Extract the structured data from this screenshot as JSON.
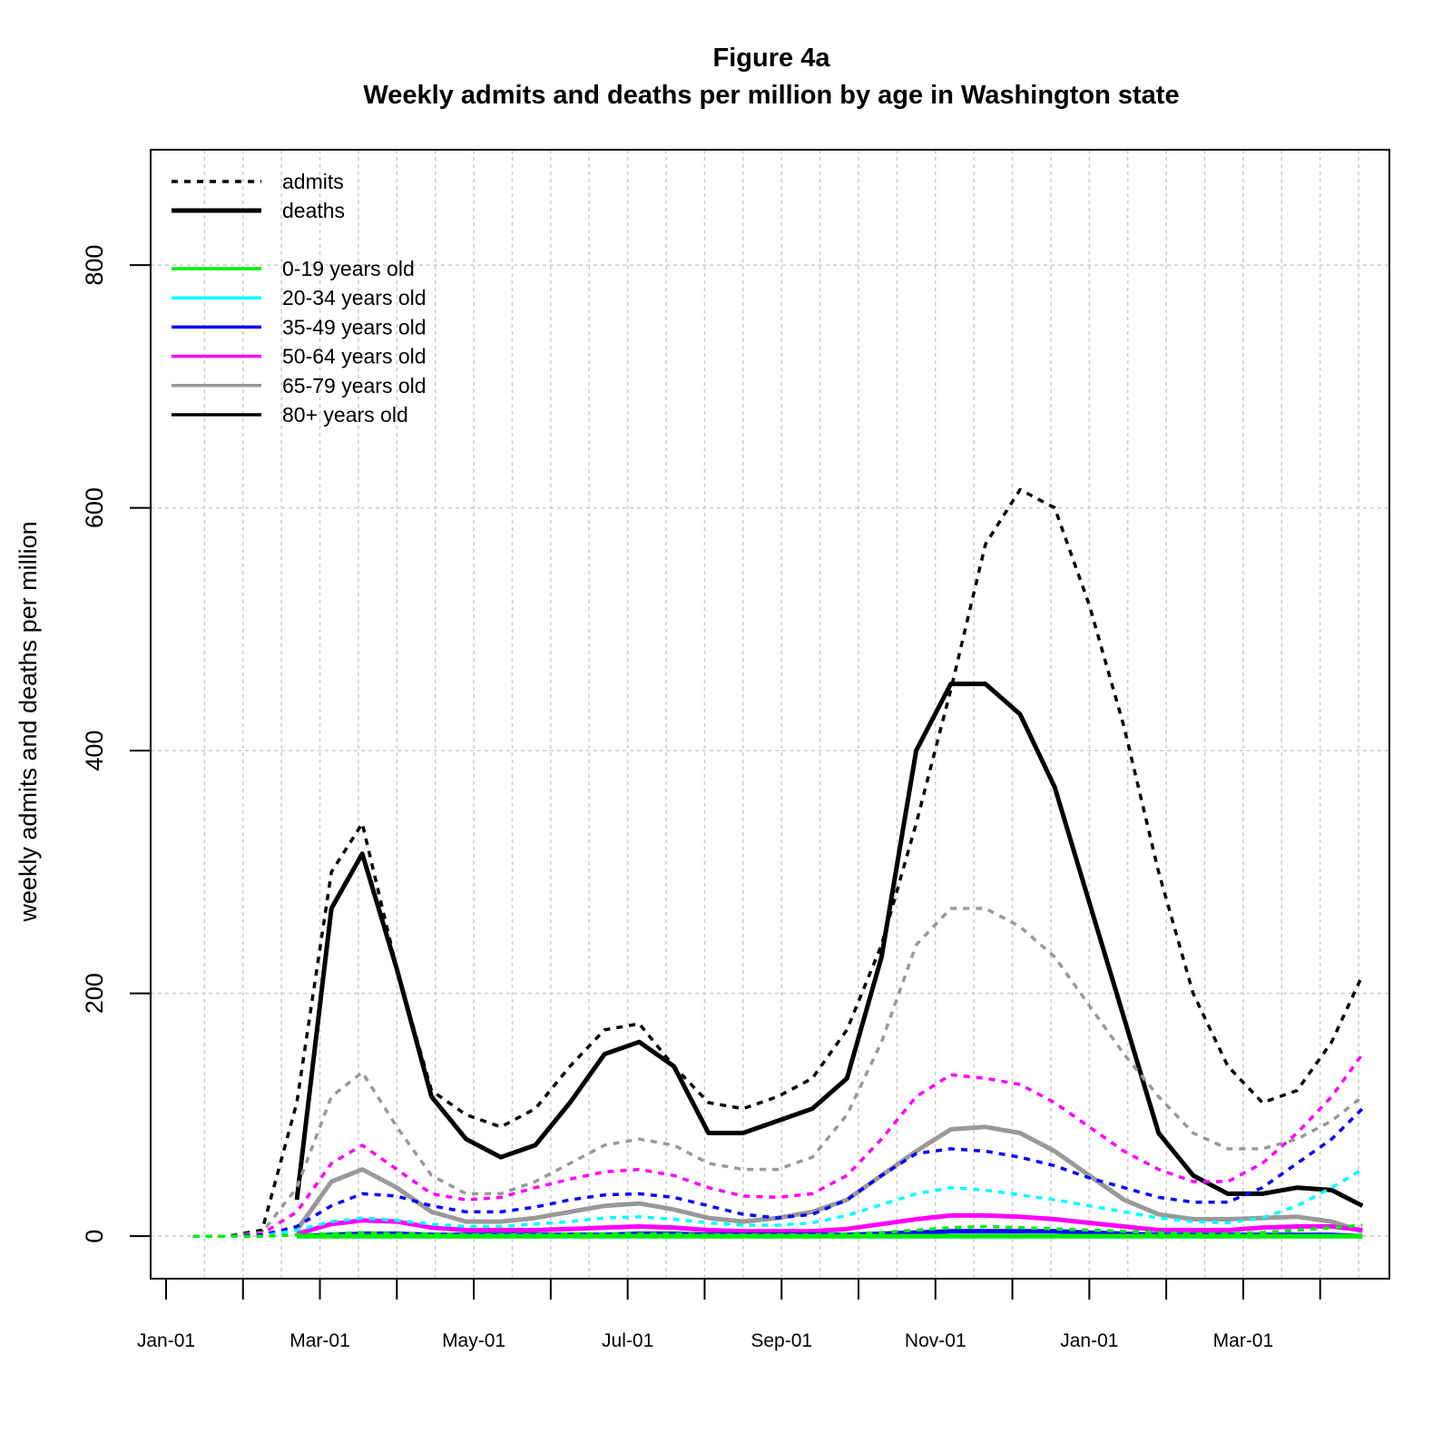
{
  "chart_data": {
    "type": "line",
    "title": "Figure 4a",
    "subtitle": "Weekly admits and deaths per million by age in Washington state",
    "xlabel": "",
    "ylabel": "weekly admits and deaths per million",
    "x_tick_labels": [
      "Jan-01",
      "Mar-01",
      "May-01",
      "Jul-01",
      "Sep-01",
      "Nov-01",
      "Jan-01",
      "Mar-01"
    ],
    "x_tick_months": [
      0,
      2,
      4,
      6,
      8,
      10,
      12,
      14
    ],
    "x_unit": "months from Jan-01",
    "xlim": [
      -0.2,
      15.9
    ],
    "ylim": [
      -35,
      895
    ],
    "y_ticks": [
      0,
      200,
      400,
      600,
      800
    ],
    "grid": true,
    "legend_position": "top-left",
    "legend": {
      "line_types": [
        {
          "label": "admits",
          "style": "dashed"
        },
        {
          "label": "deaths",
          "style": "solid"
        }
      ],
      "age_groups": [
        {
          "label": "0-19 years old",
          "color": "#00ee00"
        },
        {
          "label": "20-34 years old",
          "color": "#00ffff"
        },
        {
          "label": "35-49 years old",
          "color": "#0000ff"
        },
        {
          "label": "50-64 years old",
          "color": "#ff00ff"
        },
        {
          "label": "65-79 years old",
          "color": "#999999"
        },
        {
          "label": "80+ years old",
          "color": "#000000"
        }
      ]
    },
    "x": [
      0.35,
      0.8,
      1.25,
      1.7,
      2.15,
      2.55,
      3.0,
      3.45,
      3.9,
      4.35,
      4.8,
      5.25,
      5.7,
      6.15,
      6.6,
      7.05,
      7.5,
      7.95,
      8.4,
      8.85,
      9.3,
      9.75,
      10.2,
      10.65,
      11.1,
      11.55,
      12.0,
      12.45,
      12.9,
      13.35,
      13.8,
      14.25,
      14.7,
      15.15,
      15.55
    ],
    "series": [
      {
        "group": "80+ years old",
        "measure": "admits",
        "color": "#000000",
        "values": [
          0,
          0,
          5,
          110,
          300,
          340,
          220,
          120,
          100,
          90,
          105,
          140,
          170,
          175,
          140,
          110,
          105,
          115,
          130,
          170,
          240,
          340,
          450,
          570,
          615,
          600,
          520,
          420,
          300,
          200,
          140,
          110,
          120,
          160,
          215
        ]
      },
      {
        "group": "80+ years old",
        "measure": "deaths",
        "color": "#000000",
        "values": [
          null,
          null,
          null,
          30,
          270,
          315,
          220,
          115,
          80,
          65,
          75,
          110,
          150,
          160,
          140,
          85,
          85,
          95,
          105,
          130,
          230,
          400,
          455,
          455,
          430,
          370,
          275,
          180,
          85,
          50,
          35,
          35,
          40,
          38,
          25
        ]
      },
      {
        "group": "65-79 years old",
        "measure": "admits",
        "color": "#999999",
        "values": [
          0,
          0,
          3,
          40,
          115,
          135,
          90,
          50,
          35,
          35,
          45,
          60,
          75,
          80,
          75,
          60,
          55,
          55,
          65,
          100,
          160,
          240,
          270,
          270,
          255,
          230,
          190,
          150,
          115,
          85,
          72,
          72,
          80,
          95,
          115
        ]
      },
      {
        "group": "65-79 years old",
        "measure": "deaths",
        "color": "#999999",
        "values": [
          null,
          null,
          null,
          5,
          45,
          55,
          40,
          20,
          12,
          12,
          15,
          20,
          25,
          27,
          22,
          15,
          12,
          15,
          20,
          30,
          50,
          70,
          88,
          90,
          85,
          70,
          50,
          30,
          18,
          14,
          14,
          15,
          16,
          12,
          4
        ]
      },
      {
        "group": "50-64 years old",
        "measure": "admits",
        "color": "#ff00ff",
        "values": [
          0,
          0,
          2,
          20,
          60,
          75,
          55,
          35,
          30,
          32,
          40,
          47,
          53,
          55,
          50,
          40,
          33,
          32,
          35,
          50,
          80,
          115,
          133,
          130,
          125,
          110,
          90,
          70,
          55,
          45,
          45,
          60,
          85,
          115,
          150
        ]
      },
      {
        "group": "50-64 years old",
        "measure": "deaths",
        "color": "#ff00ff",
        "values": [
          null,
          null,
          null,
          2,
          10,
          13,
          12,
          7,
          5,
          5,
          5,
          6,
          7,
          8,
          7,
          5,
          4,
          4,
          4,
          6,
          10,
          14,
          17,
          17,
          16,
          14,
          11,
          8,
          5,
          5,
          5,
          7,
          8,
          8,
          5
        ]
      },
      {
        "group": "35-49 years old",
        "measure": "admits",
        "color": "#0000ff",
        "values": [
          0,
          0,
          1,
          8,
          25,
          35,
          33,
          25,
          20,
          20,
          24,
          30,
          34,
          35,
          32,
          25,
          18,
          15,
          18,
          30,
          50,
          68,
          72,
          70,
          65,
          58,
          48,
          40,
          32,
          28,
          28,
          40,
          60,
          80,
          105
        ]
      },
      {
        "group": "35-49 years old",
        "measure": "deaths",
        "color": "#0000ff",
        "values": [
          null,
          null,
          null,
          0,
          1,
          2,
          2,
          1,
          1,
          1,
          1,
          1,
          1,
          2,
          2,
          1,
          1,
          1,
          1,
          1,
          2,
          3,
          4,
          4,
          4,
          4,
          3,
          2,
          1,
          1,
          1,
          1,
          1,
          1,
          0
        ]
      },
      {
        "group": "20-34 years old",
        "measure": "admits",
        "color": "#00ffff",
        "values": [
          0,
          0,
          0,
          5,
          12,
          15,
          13,
          10,
          8,
          8,
          10,
          12,
          15,
          16,
          14,
          11,
          9,
          9,
          11,
          17,
          26,
          35,
          40,
          38,
          34,
          30,
          25,
          20,
          15,
          12,
          11,
          15,
          25,
          40,
          55
        ]
      },
      {
        "group": "20-34 years old",
        "measure": "deaths",
        "color": "#00ffff",
        "values": [
          null,
          null,
          null,
          0,
          0,
          0,
          0,
          0,
          0,
          0,
          0,
          0,
          0,
          0,
          0,
          0,
          0,
          0,
          0,
          0,
          0,
          0,
          0,
          0,
          0,
          0,
          0,
          0,
          0,
          0,
          0,
          0,
          0,
          0,
          0
        ]
      },
      {
        "group": "0-19 years old",
        "measure": "admits",
        "color": "#00ee00",
        "values": [
          0,
          0,
          0,
          1,
          2,
          3,
          2,
          2,
          1,
          1,
          1,
          2,
          2,
          2,
          2,
          1,
          1,
          1,
          1,
          2,
          3,
          5,
          7,
          8,
          7,
          6,
          5,
          4,
          3,
          2,
          2,
          3,
          5,
          7,
          9
        ]
      },
      {
        "group": "0-19 years old",
        "measure": "deaths",
        "color": "#00ee00",
        "values": [
          null,
          null,
          null,
          0,
          0,
          0,
          0,
          0,
          0,
          0,
          0,
          0,
          0,
          0,
          0,
          0,
          0,
          0,
          0,
          0,
          0,
          0,
          0,
          0,
          0,
          0,
          0,
          0,
          0,
          0,
          0,
          0,
          0,
          0,
          0
        ]
      }
    ]
  }
}
